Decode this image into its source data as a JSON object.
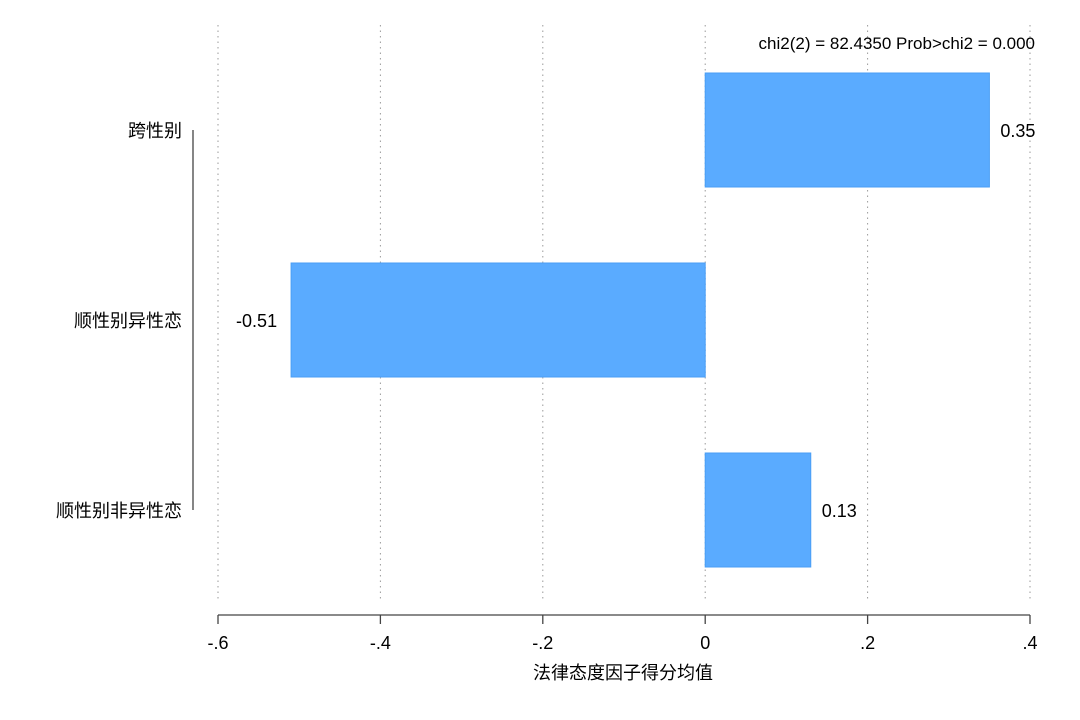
{
  "chart_data": {
    "type": "bar",
    "orientation": "horizontal",
    "categories": [
      "跨性别",
      "顺性别异性恋",
      "顺性别非异性恋"
    ],
    "values": [
      0.35,
      -0.51,
      0.13
    ],
    "value_labels": [
      "0.35",
      "-0.51",
      "0.13"
    ],
    "xlabel": "法律态度因子得分均值",
    "ylabel": "",
    "title": "",
    "xlim": [
      -0.6,
      0.4
    ],
    "xticks": [
      -0.6,
      -0.4,
      -0.2,
      0,
      0.2,
      0.4
    ],
    "xtick_labels": [
      "-.6",
      "-.4",
      "-.2",
      "0",
      ".2",
      ".4"
    ],
    "annotation": "chi2(2) =  82.4350  Prob>chi2 = 0.000",
    "grid": "vertical dotted",
    "bar_color": "#5aabff",
    "bar_edge_color": "#4a9ef5"
  }
}
